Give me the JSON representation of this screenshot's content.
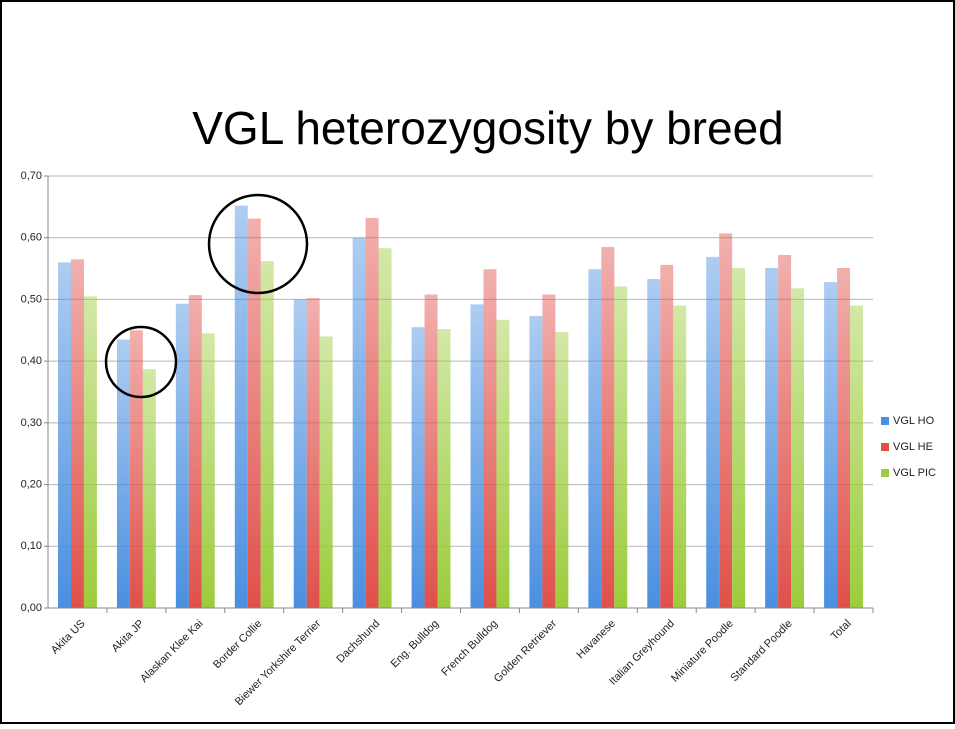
{
  "chart_data": {
    "type": "bar",
    "title": "VGL heterozygosity by breed",
    "categories": [
      "Akita US",
      "Akita JP",
      "Alaskan Klee Kai",
      "Border Collie",
      "Biewer Yorkshire Terrier",
      "Dachshund",
      "Eng. Bulldog",
      "French Bulldog",
      "Golden Retriever",
      "Havanese",
      "Italian Greyhound",
      "Miniature Poodle",
      "Standard Poodle",
      "Total"
    ],
    "series": [
      {
        "name": "VGL HO",
        "color": "#4a8fe0",
        "values": [
          0.56,
          0.435,
          0.493,
          0.652,
          0.5,
          0.6,
          0.455,
          0.492,
          0.473,
          0.549,
          0.533,
          0.569,
          0.551,
          0.528
        ]
      },
      {
        "name": "VGL HE",
        "color": "#e0504a",
        "values": [
          0.565,
          0.45,
          0.507,
          0.631,
          0.502,
          0.632,
          0.508,
          0.549,
          0.508,
          0.585,
          0.556,
          0.607,
          0.572,
          0.551
        ]
      },
      {
        "name": "VGL PIC",
        "color": "#9ccc3c",
        "values": [
          0.505,
          0.387,
          0.445,
          0.562,
          0.44,
          0.583,
          0.452,
          0.467,
          0.447,
          0.521,
          0.49,
          0.551,
          0.518,
          0.49
        ]
      }
    ],
    "ylim": [
      0,
      0.7
    ],
    "yticks": [
      {
        "value": 0,
        "label": "0,00"
      },
      {
        "value": 0.1,
        "label": "0,10"
      },
      {
        "value": 0.2,
        "label": "0,20"
      },
      {
        "value": 0.3,
        "label": "0,30"
      },
      {
        "value": 0.4,
        "label": "0,40"
      },
      {
        "value": 0.5,
        "label": "0,50"
      },
      {
        "value": 0.6,
        "label": "0,60"
      },
      {
        "value": 0.7,
        "label": "0,70"
      }
    ],
    "grid": true,
    "legend": "right"
  }
}
